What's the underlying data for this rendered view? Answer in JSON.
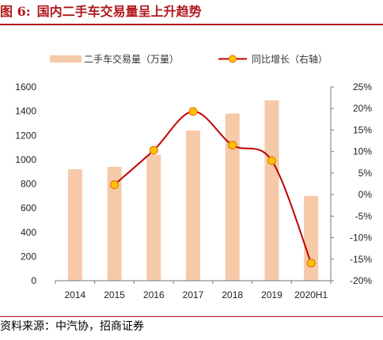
{
  "figure": {
    "label": "图 6:",
    "title": "国内二手车交易量呈上升趋势",
    "source": "资料来源：中汽协，招商证券"
  },
  "colors": {
    "bar": "#f6c9a9",
    "line": "#c00000",
    "marker_fill": "#ffc000",
    "marker_edge": "#e07000",
    "title": "#b0171b"
  },
  "chart_data": {
    "type": "bar",
    "categories": [
      "2014",
      "2015",
      "2016",
      "2017",
      "2018",
      "2019",
      "2020H1"
    ],
    "series": [
      {
        "name": "二手车交易量（万量）",
        "type": "bar",
        "axis": "left",
        "values": [
          920,
          940,
          1040,
          1240,
          1380,
          1490,
          700
        ]
      },
      {
        "name": "同比增长（右轴）",
        "type": "line",
        "axis": "right",
        "values": [
          null,
          2.3,
          10.3,
          19.3,
          11.5,
          7.9,
          -15.9
        ]
      }
    ],
    "ylim": [
      0,
      1600
    ],
    "yticks": [
      "0",
      "200",
      "400",
      "600",
      "800",
      "1000",
      "1200",
      "1400",
      "1600"
    ],
    "y2lim": [
      -20,
      25
    ],
    "y2ticks": [
      "-20%",
      "-15%",
      "-10%",
      "-5%",
      "0%",
      "5%",
      "10%",
      "15%",
      "20%",
      "25%"
    ],
    "grid": false,
    "legend": "top"
  }
}
